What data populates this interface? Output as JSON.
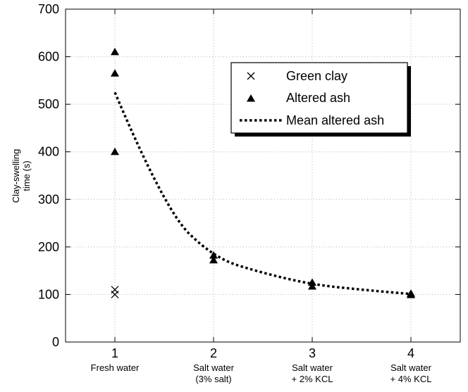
{
  "chart_data": {
    "type": "scatter",
    "title": "",
    "xlabel": "",
    "ylabel_lines": [
      "Clay-swelling",
      "time (s)"
    ],
    "xlim": [
      0.5,
      4.5
    ],
    "ylim": [
      0,
      700
    ],
    "x_ticks": [
      {
        "value": 1,
        "label": "1",
        "sub": [
          "Fresh water"
        ]
      },
      {
        "value": 2,
        "label": "2",
        "sub": [
          "Salt water",
          "(3% salt)"
        ]
      },
      {
        "value": 3,
        "label": "3",
        "sub": [
          "Salt water",
          "+ 2% KCL"
        ]
      },
      {
        "value": 4,
        "label": "4",
        "sub": [
          "Salt water",
          "+ 4% KCL"
        ]
      }
    ],
    "y_ticks": [
      0,
      100,
      200,
      300,
      400,
      500,
      600,
      700
    ],
    "grid": true,
    "legend_position": "top-right",
    "series": [
      {
        "name": "Green clay",
        "marker": "x",
        "points": [
          [
            1,
            110
          ],
          [
            1,
            100
          ]
        ]
      },
      {
        "name": "Altered ash",
        "marker": "triangle",
        "points": [
          [
            1,
            610
          ],
          [
            1,
            565
          ],
          [
            1,
            400
          ],
          [
            2,
            182
          ],
          [
            2,
            172
          ],
          [
            3,
            125
          ],
          [
            3,
            117
          ],
          [
            4,
            102
          ],
          [
            4,
            99
          ]
        ]
      },
      {
        "name": "Mean altered ash",
        "marker": "dotted-line",
        "points": [
          [
            1,
            525
          ],
          [
            1.5,
            280
          ],
          [
            2,
            177
          ],
          [
            2.5,
            145
          ],
          [
            3,
            121
          ],
          [
            3.5,
            110
          ],
          [
            4,
            101
          ]
        ]
      }
    ]
  }
}
